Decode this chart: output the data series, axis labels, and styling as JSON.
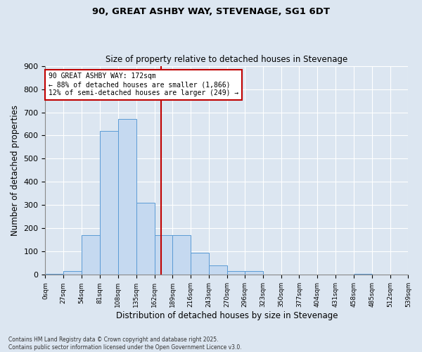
{
  "title1": "90, GREAT ASHBY WAY, STEVENAGE, SG1 6DT",
  "title2": "Size of property relative to detached houses in Stevenage",
  "xlabel": "Distribution of detached houses by size in Stevenage",
  "ylabel": "Number of detached properties",
  "annotation_line1": "90 GREAT ASHBY WAY: 172sqm",
  "annotation_line2": "← 88% of detached houses are smaller (1,866)",
  "annotation_line3": "12% of semi-detached houses are larger (249) →",
  "property_size": 172,
  "bin_edges": [
    0,
    27,
    54,
    81,
    108,
    135,
    162,
    189,
    216,
    243,
    270,
    296,
    323,
    350,
    377,
    404,
    431,
    458,
    485,
    512,
    539
  ],
  "bin_labels": [
    "0sqm",
    "27sqm",
    "54sqm",
    "81sqm",
    "108sqm",
    "135sqm",
    "162sqm",
    "189sqm",
    "216sqm",
    "243sqm",
    "270sqm",
    "296sqm",
    "323sqm",
    "350sqm",
    "377sqm",
    "404sqm",
    "431sqm",
    "458sqm",
    "485sqm",
    "512sqm",
    "539sqm"
  ],
  "bar_heights": [
    5,
    15,
    170,
    620,
    670,
    310,
    170,
    170,
    95,
    40,
    15,
    15,
    0,
    0,
    0,
    0,
    0,
    5,
    0,
    0
  ],
  "bar_color": "#c5d9f0",
  "bar_edge_color": "#5b9bd5",
  "vline_color": "#c00000",
  "vline_x": 172,
  "background_color": "#dce6f1",
  "plot_bg_color": "#dce6f1",
  "ylim": [
    0,
    900
  ],
  "yticks": [
    0,
    100,
    200,
    300,
    400,
    500,
    600,
    700,
    800,
    900
  ],
  "footer1": "Contains HM Land Registry data © Crown copyright and database right 2025.",
  "footer2": "Contains public sector information licensed under the Open Government Licence v3.0."
}
